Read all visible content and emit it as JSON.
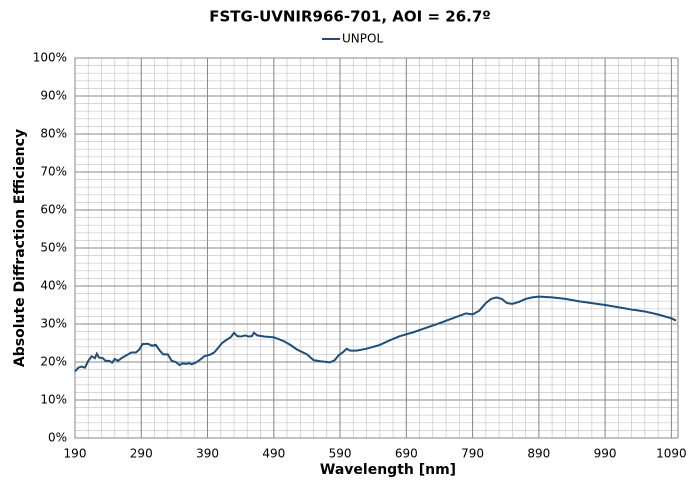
{
  "chart_data": {
    "type": "line",
    "title": "FSTG-UVNIR966-701, AOI = 26.7º",
    "x_label": "Wavelength [nm]",
    "y_label": "Absolute Diffraction Efficiency",
    "xlim": [
      190,
      1100
    ],
    "ylim": [
      0,
      100
    ],
    "xticks": [
      190,
      290,
      390,
      490,
      590,
      690,
      790,
      890,
      990,
      1090
    ],
    "yticks": [
      {
        "value": 0,
        "label": "0%"
      },
      {
        "value": 10,
        "label": "10%"
      },
      {
        "value": 20,
        "label": "20%"
      },
      {
        "value": 30,
        "label": "30%"
      },
      {
        "value": 40,
        "label": "40%"
      },
      {
        "value": 50,
        "label": "50%"
      },
      {
        "value": 60,
        "label": "60%"
      },
      {
        "value": 70,
        "label": "70%"
      },
      {
        "value": 80,
        "label": "80%"
      },
      {
        "value": 90,
        "label": "90%"
      },
      {
        "value": 100,
        "label": "100%"
      }
    ],
    "grid": true,
    "legend": "top",
    "x": [
      190,
      195,
      200,
      205,
      210,
      215,
      220,
      223,
      226,
      232,
      236,
      242,
      246,
      250,
      255,
      260,
      268,
      275,
      282,
      287,
      292,
      300,
      306,
      312,
      318,
      323,
      330,
      336,
      342,
      348,
      352,
      358,
      362,
      366,
      372,
      378,
      385,
      395,
      400,
      405,
      412,
      420,
      425,
      430,
      435,
      440,
      447,
      452,
      457,
      460,
      465,
      475,
      490,
      505,
      515,
      525,
      540,
      550,
      560,
      575,
      582,
      588,
      594,
      600,
      605,
      615,
      630,
      650,
      665,
      680,
      700,
      720,
      740,
      760,
      780,
      790,
      800,
      810,
      818,
      826,
      834,
      842,
      850,
      860,
      870,
      880,
      890,
      910,
      930,
      950,
      970,
      990,
      1010,
      1030,
      1050,
      1070,
      1090,
      1097
    ],
    "series": [
      {
        "name": "UNPOL",
        "color": "#1f4e79",
        "values": [
          17.5,
          18.5,
          18.8,
          18.5,
          20.3,
          21.5,
          21.0,
          22.2,
          21.2,
          21.0,
          20.3,
          20.3,
          19.8,
          20.8,
          20.3,
          21.0,
          21.8,
          22.5,
          22.5,
          23.3,
          24.7,
          24.8,
          24.3,
          24.5,
          23.0,
          22.0,
          22.0,
          20.3,
          20.0,
          19.2,
          19.6,
          19.5,
          19.7,
          19.4,
          19.8,
          20.5,
          21.5,
          22.0,
          22.5,
          23.5,
          25.0,
          26.0,
          26.5,
          27.7,
          26.8,
          26.7,
          27.0,
          26.7,
          26.8,
          27.7,
          27.0,
          26.7,
          26.5,
          25.5,
          24.5,
          23.3,
          22.0,
          20.5,
          20.2,
          19.9,
          20.5,
          21.8,
          22.5,
          23.5,
          23.0,
          23.0,
          23.5,
          24.5,
          25.7,
          26.8,
          27.8,
          29.0,
          30.2,
          31.5,
          32.8,
          32.5,
          33.5,
          35.5,
          36.6,
          37.0,
          36.6,
          35.5,
          35.3,
          35.8,
          36.6,
          37.0,
          37.2,
          37.0,
          36.6,
          36.0,
          35.5,
          35.0,
          34.4,
          33.8,
          33.3,
          32.5,
          31.5,
          30.9
        ]
      }
    ]
  }
}
